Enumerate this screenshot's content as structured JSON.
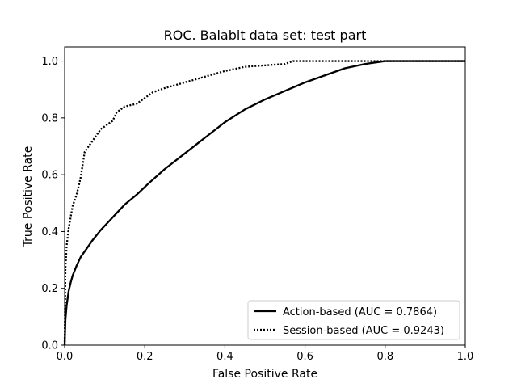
{
  "chart_data": {
    "type": "line",
    "title": "ROC. Balabit data set: test part",
    "xlabel": "False Positive Rate",
    "ylabel": "True Positive Rate",
    "xlim": [
      0.0,
      1.0
    ],
    "ylim": [
      0.0,
      1.05
    ],
    "xticks": [
      "0.0",
      "0.2",
      "0.4",
      "0.6",
      "0.8",
      "1.0"
    ],
    "yticks": [
      "0.0",
      "0.2",
      "0.4",
      "0.6",
      "0.8",
      "1.0"
    ],
    "grid": false,
    "legend_position": "lower-right",
    "series": [
      {
        "name": "Action-based (AUC = 0.7864)",
        "style": "solid",
        "color": "#000000",
        "x": [
          0.0,
          0.002,
          0.005,
          0.01,
          0.015,
          0.02,
          0.03,
          0.04,
          0.05,
          0.07,
          0.09,
          0.11,
          0.13,
          0.15,
          0.18,
          0.21,
          0.25,
          0.3,
          0.35,
          0.4,
          0.45,
          0.5,
          0.55,
          0.6,
          0.65,
          0.7,
          0.75,
          0.8,
          0.85,
          0.9,
          0.95,
          1.0
        ],
        "y": [
          0.0,
          0.09,
          0.14,
          0.19,
          0.22,
          0.245,
          0.28,
          0.31,
          0.33,
          0.37,
          0.405,
          0.435,
          0.465,
          0.495,
          0.53,
          0.57,
          0.62,
          0.675,
          0.73,
          0.785,
          0.83,
          0.865,
          0.895,
          0.925,
          0.95,
          0.975,
          0.99,
          1.0,
          1.0,
          1.0,
          1.0,
          1.0
        ]
      },
      {
        "name": "Session-based (AUC = 0.9243)",
        "style": "dotted",
        "color": "#000000",
        "x": [
          0.0,
          0.002,
          0.005,
          0.01,
          0.015,
          0.02,
          0.03,
          0.04,
          0.05,
          0.07,
          0.09,
          0.1,
          0.12,
          0.13,
          0.15,
          0.18,
          0.2,
          0.22,
          0.25,
          0.3,
          0.35,
          0.4,
          0.45,
          0.5,
          0.55,
          0.57,
          0.6,
          0.7,
          0.8,
          0.9,
          1.0
        ],
        "y": [
          0.0,
          0.27,
          0.35,
          0.41,
          0.45,
          0.49,
          0.53,
          0.59,
          0.68,
          0.72,
          0.76,
          0.77,
          0.79,
          0.82,
          0.84,
          0.85,
          0.87,
          0.89,
          0.905,
          0.925,
          0.945,
          0.965,
          0.98,
          0.985,
          0.99,
          1.0,
          1.0,
          1.0,
          1.0,
          1.0,
          1.0
        ]
      }
    ]
  }
}
